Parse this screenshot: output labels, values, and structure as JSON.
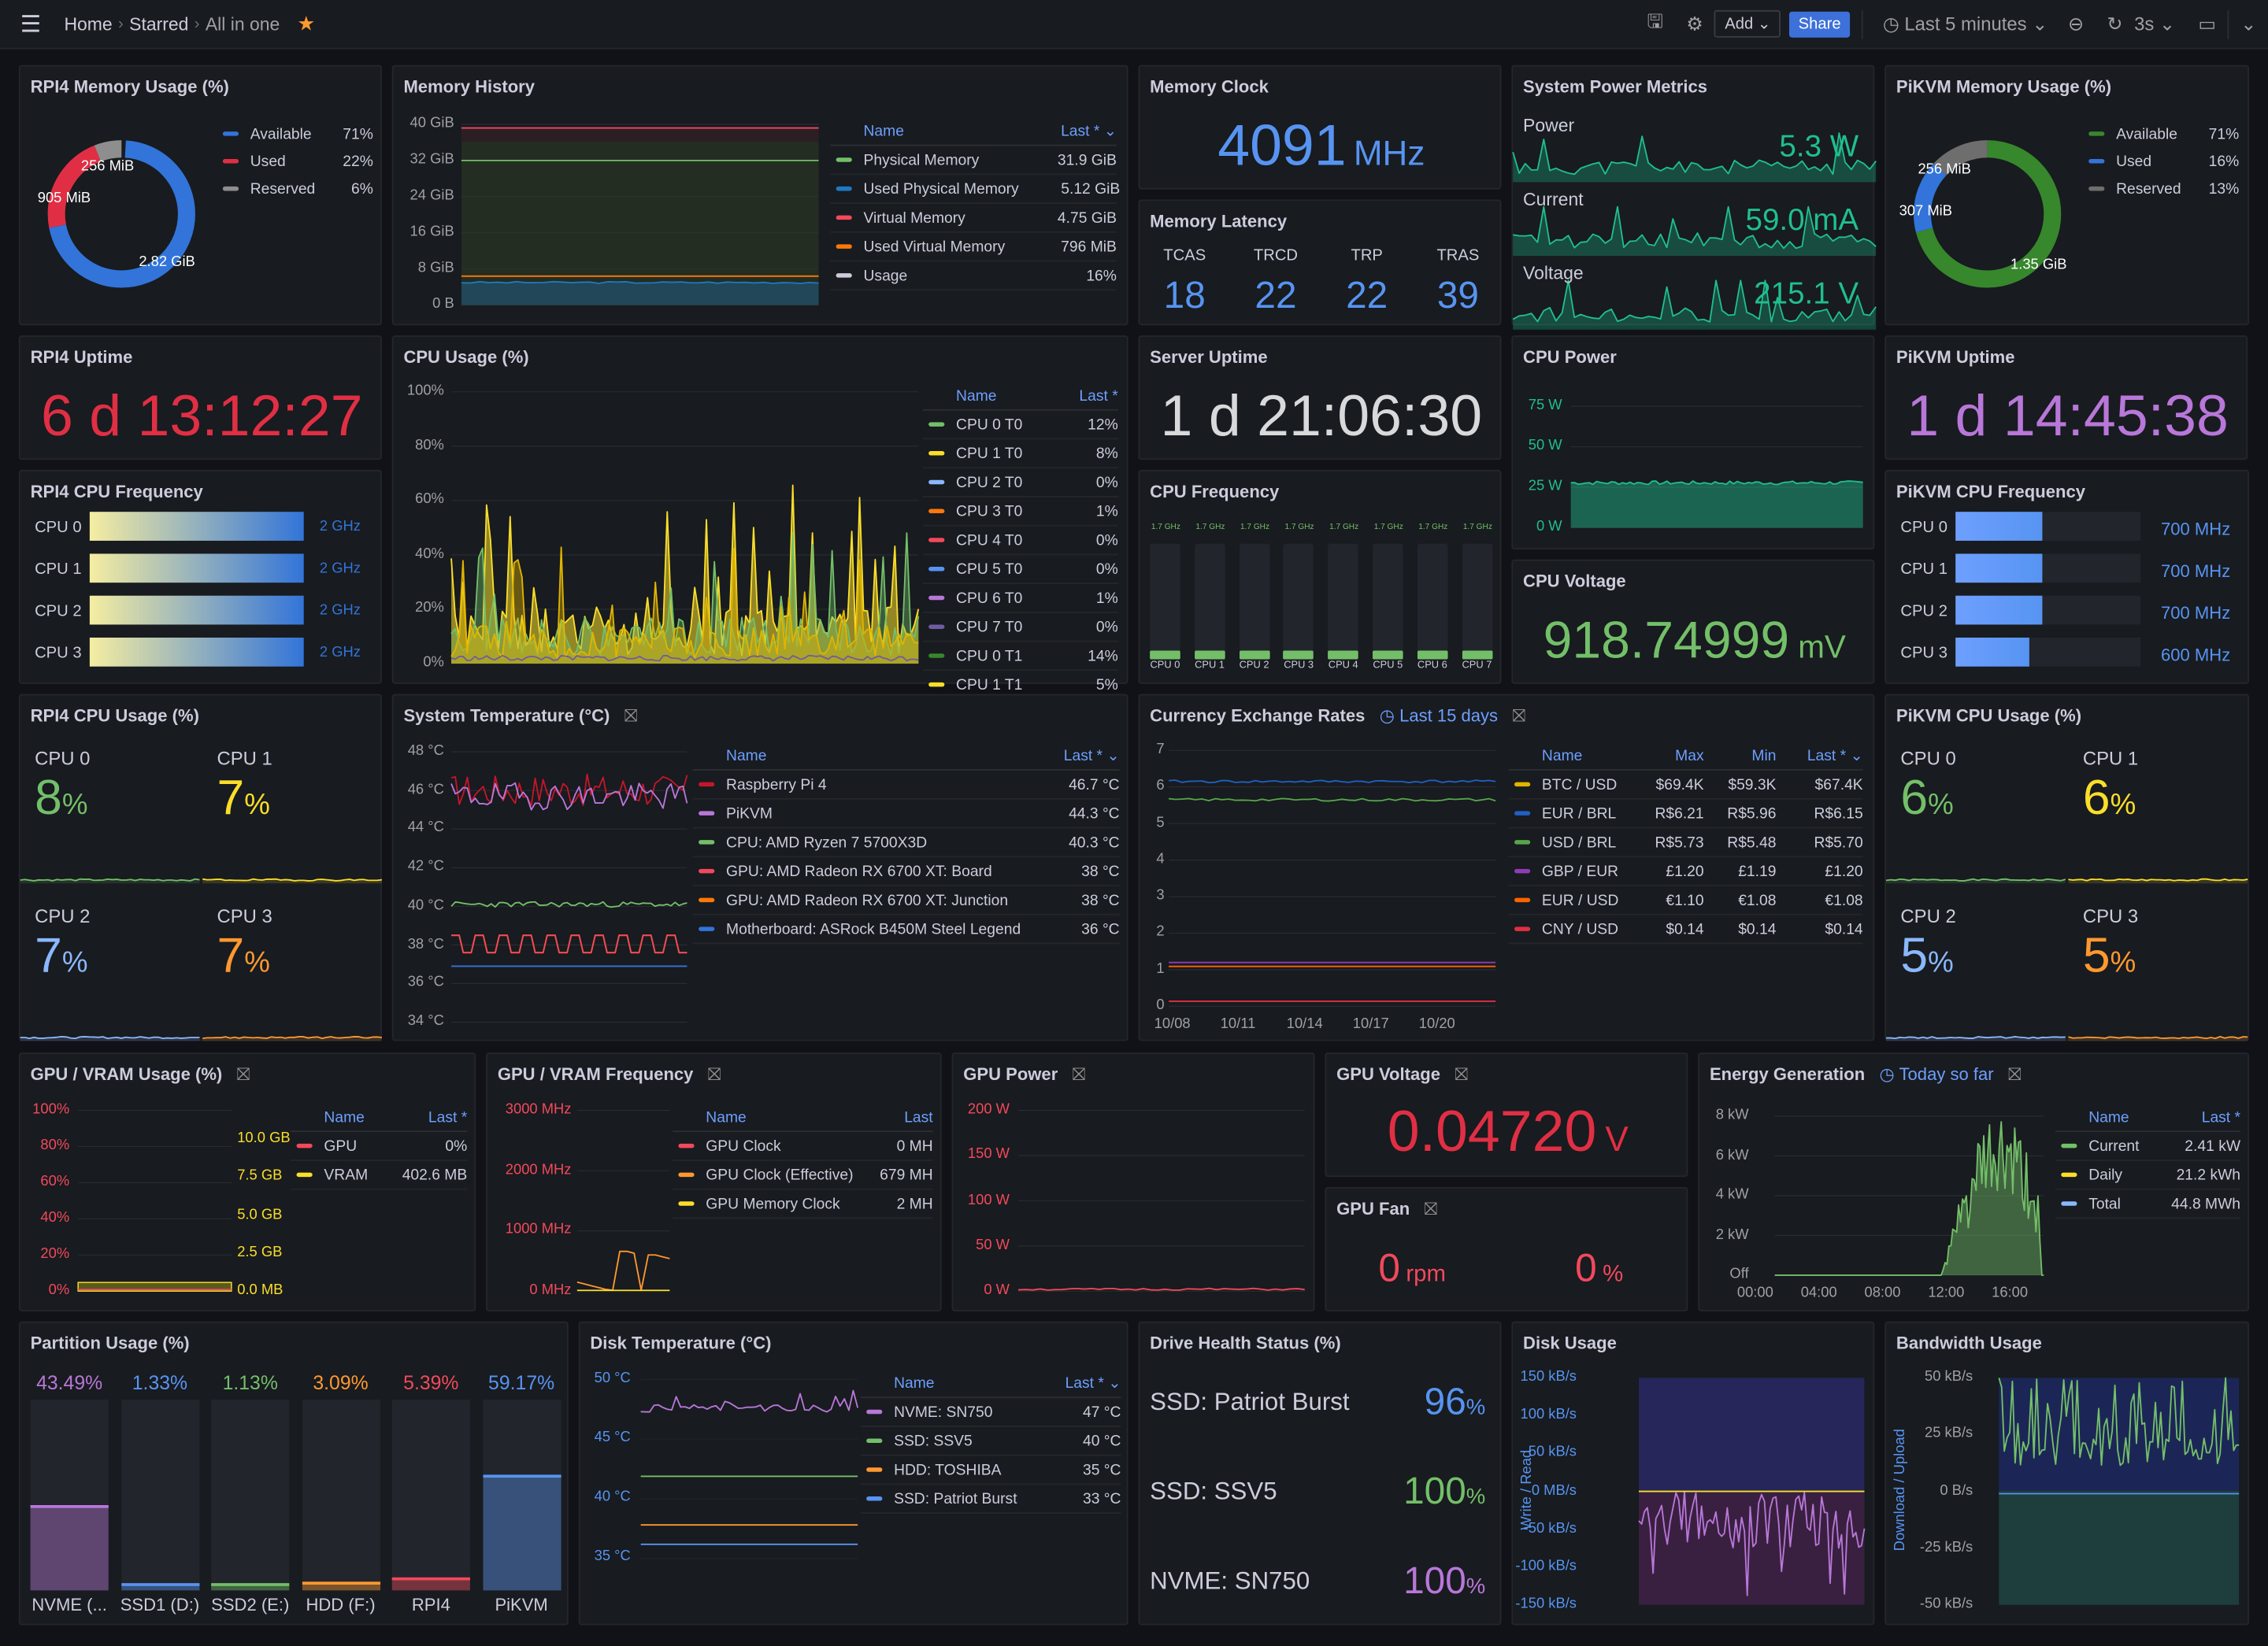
{
  "topbar": {
    "breadcrumb": [
      "Home",
      "Starred",
      "All in one"
    ],
    "add_label": "Add",
    "share_label": "Share",
    "time_range": "Last 5 minutes",
    "refresh_interval": "3s",
    "icons": [
      "menu-icon",
      "star-icon",
      "save-icon",
      "gear-icon",
      "clock-icon",
      "zoom-out-icon",
      "refresh-icon",
      "tv-icon",
      "chevron-down-icon"
    ]
  },
  "colors": {
    "background": "#111217",
    "panel": "#181b1f",
    "accent": "#3d71d9",
    "green": "#73bf69",
    "yellow": "#fade2a",
    "blue": "#5794f2",
    "orange": "#ff9830",
    "red": "#f2495c",
    "purple": "#b877d9"
  },
  "panels": {
    "rpi4_mem": {
      "title": "RPI4 Memory Usage (%)",
      "slice_labels": [
        "256 MiB",
        "905 MiB",
        "2.82 GiB"
      ],
      "legend": {
        "rows": [
          {
            "name": "Available",
            "values": [
              "71%"
            ],
            "color": "#3274d9",
            "pct": 71
          },
          {
            "name": "Used",
            "values": [
              "22%"
            ],
            "color": "#e02f44",
            "pct": 22
          },
          {
            "name": "Reserved",
            "values": [
              "6%"
            ],
            "color": "#8e8e8e",
            "pct": 6
          }
        ]
      }
    },
    "mem_history": {
      "title": "Memory History",
      "yticks": [
        "40 GiB",
        "32 GiB",
        "24 GiB",
        "16 GiB",
        "8 GiB",
        "0 B"
      ],
      "legend": {
        "headers": [
          "Name",
          "Last * ⌄"
        ],
        "rows": [
          {
            "name": "Physical Memory",
            "values": [
              "31.9 GiB"
            ],
            "color": "#73bf69"
          },
          {
            "name": "Used Physical Memory",
            "values": [
              "5.12 GiB"
            ],
            "color": "#1f78c1"
          },
          {
            "name": "Virtual Memory",
            "values": [
              "4.75 GiB"
            ],
            "color": "#f2495c"
          },
          {
            "name": "Used Virtual Memory",
            "values": [
              "796 MiB"
            ],
            "color": "#ff780a"
          },
          {
            "name": "Usage",
            "values": [
              "16%"
            ],
            "color": "#ccccdc"
          }
        ]
      }
    },
    "mem_clock": {
      "title": "Memory Clock",
      "value": "4091",
      "unit": "MHz"
    },
    "mem_latency": {
      "title": "Memory Latency",
      "items": [
        {
          "label": "TCAS",
          "value": "18"
        },
        {
          "label": "TRCD",
          "value": "22"
        },
        {
          "label": "TRP",
          "value": "22"
        },
        {
          "label": "TRAS",
          "value": "39"
        }
      ]
    },
    "power_metrics": {
      "title": "System Power Metrics",
      "items": [
        {
          "label": "Power",
          "value": "5.3 W"
        },
        {
          "label": "Current",
          "value": "59.0 mA"
        },
        {
          "label": "Voltage",
          "value": "215.1 V"
        }
      ]
    },
    "pikvm_mem": {
      "title": "PiKVM Memory Usage (%)",
      "slice_labels": [
        "256 MiB",
        "307 MiB",
        "1.35 GiB"
      ],
      "legend": {
        "rows": [
          {
            "name": "Available",
            "values": [
              "71%"
            ],
            "color": "#37872d",
            "pct": 71
          },
          {
            "name": "Used",
            "values": [
              "16%"
            ],
            "color": "#3274d9",
            "pct": 16
          },
          {
            "name": "Reserved",
            "values": [
              "13%"
            ],
            "color": "#6e6e6e",
            "pct": 13
          }
        ]
      }
    },
    "rpi4_uptime": {
      "title": "RPI4 Uptime",
      "value": "6 d 13:12:27"
    },
    "cpu_usage": {
      "title": "CPU Usage (%)",
      "yticks": [
        "100%",
        "80%",
        "60%",
        "40%",
        "20%",
        "0%"
      ],
      "legend": {
        "headers": [
          "Name",
          "Last *"
        ],
        "rows": [
          {
            "name": "CPU 0 T0",
            "values": [
              "12%"
            ],
            "color": "#73bf69"
          },
          {
            "name": "CPU 1 T0",
            "values": [
              "8%"
            ],
            "color": "#fade2a"
          },
          {
            "name": "CPU 2 T0",
            "values": [
              "0%"
            ],
            "color": "#8ab8ff"
          },
          {
            "name": "CPU 3 T0",
            "values": [
              "1%"
            ],
            "color": "#ff780a"
          },
          {
            "name": "CPU 4 T0",
            "values": [
              "0%"
            ],
            "color": "#f2495c"
          },
          {
            "name": "CPU 5 T0",
            "values": [
              "0%"
            ],
            "color": "#5794f2"
          },
          {
            "name": "CPU 6 T0",
            "values": [
              "1%"
            ],
            "color": "#b877d9"
          },
          {
            "name": "CPU 7 T0",
            "values": [
              "0%"
            ],
            "color": "#705da0"
          },
          {
            "name": "CPU 0 T1",
            "values": [
              "14%"
            ],
            "color": "#37872d"
          },
          {
            "name": "CPU 1 T1",
            "values": [
              "5%"
            ],
            "color": "#fade2a"
          }
        ]
      }
    },
    "server_uptime": {
      "title": "Server Uptime",
      "value": "1 d 21:06:30"
    },
    "cpu_power": {
      "title": "CPU Power",
      "yticks": [
        "75 W",
        "50 W",
        "25 W",
        "0 W"
      ]
    },
    "pikvm_uptime": {
      "title": "PiKVM Uptime",
      "value": "1 d 14:45:38"
    },
    "rpi4_cpu_freq": {
      "title": "RPI4 CPU Frequency",
      "bars": [
        {
          "label": "CPU 0",
          "value": "2 GHz",
          "level": 1
        },
        {
          "label": "CPU 1",
          "value": "2 GHz",
          "level": 1
        },
        {
          "label": "CPU 2",
          "value": "2 GHz",
          "level": 1
        },
        {
          "label": "CPU 3",
          "value": "2 GHz",
          "level": 1
        }
      ]
    },
    "cpu_freq": {
      "title": "CPU Frequency",
      "bars": [
        {
          "label": "CPU 0",
          "value": "1.7 GHz",
          "level": 0.08
        },
        {
          "label": "CPU 1",
          "value": "1.7 GHz",
          "level": 0.08
        },
        {
          "label": "CPU 2",
          "value": "1.7 GHz",
          "level": 0.08
        },
        {
          "label": "CPU 3",
          "value": "1.7 GHz",
          "level": 0.08
        },
        {
          "label": "CPU 4",
          "value": "1.7 GHz",
          "level": 0.08
        },
        {
          "label": "CPU 5",
          "value": "1.7 GHz",
          "level": 0.08
        },
        {
          "label": "CPU 6",
          "value": "1.7 GHz",
          "level": 0.08
        },
        {
          "label": "CPU 7",
          "value": "1.7 GHz",
          "level": 0.08
        }
      ]
    },
    "cpu_voltage": {
      "title": "CPU Voltage",
      "value": "918.74999",
      "unit": "mV"
    },
    "pikvm_cpu_freq": {
      "title": "PiKVM CPU Frequency",
      "bars": [
        {
          "label": "CPU 0",
          "value": "700 MHz",
          "level": 0.47
        },
        {
          "label": "CPU 1",
          "value": "700 MHz",
          "level": 0.47
        },
        {
          "label": "CPU 2",
          "value": "700 MHz",
          "level": 0.47
        },
        {
          "label": "CPU 3",
          "value": "600 MHz",
          "level": 0.4
        }
      ]
    },
    "rpi4_cpu_usage": {
      "title": "RPI4 CPU Usage (%)",
      "items": [
        {
          "label": "CPU 0",
          "value": "8",
          "unit": "%",
          "color": "#73bf69"
        },
        {
          "label": "CPU 1",
          "value": "7",
          "unit": "%",
          "color": "#fade2a"
        },
        {
          "label": "CPU 2",
          "value": "7",
          "unit": "%",
          "color": "#8ab8ff"
        },
        {
          "label": "CPU 3",
          "value": "7",
          "unit": "%",
          "color": "#ff9830"
        }
      ]
    },
    "sys_temp": {
      "title": "System Temperature (°C)",
      "yticks": [
        "48 °C",
        "46 °C",
        "44 °C",
        "42 °C",
        "40 °C",
        "38 °C",
        "36 °C",
        "34 °C"
      ],
      "legend": {
        "headers": [
          "Name",
          "Last * ⌄"
        ],
        "rows": [
          {
            "name": "Raspberry Pi 4",
            "values": [
              "46.7 °C"
            ],
            "color": "#c4162a"
          },
          {
            "name": "PiKVM",
            "values": [
              "44.3 °C"
            ],
            "color": "#b877d9"
          },
          {
            "name": "CPU: AMD Ryzen 7 5700X3D",
            "values": [
              "40.3 °C"
            ],
            "color": "#73bf69"
          },
          {
            "name": "GPU: AMD Radeon RX 6700 XT: Board",
            "values": [
              "38 °C"
            ],
            "color": "#f2495c"
          },
          {
            "name": "GPU: AMD Radeon RX 6700 XT: Junction",
            "values": [
              "38 °C"
            ],
            "color": "#ff780a"
          },
          {
            "name": "Motherboard: ASRock B450M Steel Legend",
            "values": [
              "36 °C"
            ],
            "color": "#3274d9"
          }
        ]
      }
    },
    "currency": {
      "title": "Currency Exchange Rates",
      "subtitle": "Last 15 days",
      "yticks": [
        "7",
        "6",
        "5",
        "4",
        "3",
        "2",
        "1",
        "0"
      ],
      "xticks": [
        "10/08",
        "10/11",
        "10/14",
        "10/17",
        "10/20"
      ],
      "legend": {
        "headers": [
          "Name",
          "Max",
          "Min",
          "Last * ⌄"
        ],
        "rows": [
          {
            "name": "BTC / USD",
            "values": [
              "$69.4K",
              "$59.3K",
              "$67.4K"
            ],
            "color": "#e0b400"
          },
          {
            "name": "EUR / BRL",
            "values": [
              "R$6.21",
              "R$5.96",
              "R$6.15"
            ],
            "color": "#1f60c4"
          },
          {
            "name": "USD / BRL",
            "values": [
              "R$5.73",
              "R$5.48",
              "R$5.70"
            ],
            "color": "#56a64b"
          },
          {
            "name": "GBP / EUR",
            "values": [
              "£1.20",
              "£1.19",
              "£1.20"
            ],
            "color": "#8f3bb8"
          },
          {
            "name": "EUR / USD",
            "values": [
              "€1.10",
              "€1.08",
              "€1.08"
            ],
            "color": "#fa6400"
          },
          {
            "name": "CNY / USD",
            "values": [
              "$0.14",
              "$0.14",
              "$0.14"
            ],
            "color": "#e02f44"
          }
        ]
      }
    },
    "pikvm_cpu_usage": {
      "title": "PiKVM CPU Usage (%)",
      "items": [
        {
          "label": "CPU 0",
          "value": "6",
          "unit": "%",
          "color": "#73bf69"
        },
        {
          "label": "CPU 1",
          "value": "6",
          "unit": "%",
          "color": "#fade2a"
        },
        {
          "label": "CPU 2",
          "value": "5",
          "unit": "%",
          "color": "#8ab8ff"
        },
        {
          "label": "CPU 3",
          "value": "5",
          "unit": "%",
          "color": "#ff9830"
        }
      ]
    },
    "gpu_usage": {
      "title": "GPU / VRAM Usage (%)",
      "yticks": [
        "100%",
        "80%",
        "60%",
        "40%",
        "20%",
        "0%"
      ],
      "yticks_right": [
        "10.0 GB",
        "7.5 GB",
        "5.0 GB",
        "2.5 GB",
        "0.0 MB"
      ],
      "legend": {
        "headers": [
          "Name",
          "Last *"
        ],
        "rows": [
          {
            "name": "GPU",
            "values": [
              "0%"
            ],
            "color": "#f2495c"
          },
          {
            "name": "VRAM",
            "values": [
              "402.6 MB"
            ],
            "color": "#fade2a"
          }
        ]
      }
    },
    "gpu_freq": {
      "title": "GPU / VRAM Frequency",
      "yticks": [
        "3000 MHz",
        "2000 MHz",
        "1000 MHz",
        "0 MHz"
      ],
      "legend": {
        "headers": [
          "Name",
          "Last"
        ],
        "rows": [
          {
            "name": "GPU Clock",
            "values": [
              "0 MH"
            ],
            "color": "#f2495c"
          },
          {
            "name": "GPU Clock (Effective)",
            "values": [
              "679 MH"
            ],
            "color": "#ff9830"
          },
          {
            "name": "GPU Memory Clock",
            "values": [
              "2 MH"
            ],
            "color": "#fade2a"
          }
        ]
      }
    },
    "gpu_power": {
      "title": "GPU Power",
      "yticks": [
        "200 W",
        "150 W",
        "100 W",
        "50 W",
        "0 W"
      ]
    },
    "gpu_voltage": {
      "title": "GPU Voltage",
      "value": "0.04720",
      "unit": "V"
    },
    "gpu_fan": {
      "title": "GPU Fan",
      "items": [
        {
          "value": "0",
          "unit": "rpm"
        },
        {
          "value": "0",
          "unit": "%"
        }
      ]
    },
    "energy": {
      "title": "Energy Generation",
      "subtitle": "Today so far",
      "yticks": [
        "8 kW",
        "6 kW",
        "4 kW",
        "2 kW",
        "Off"
      ],
      "xticks": [
        "00:00",
        "04:00",
        "08:00",
        "12:00",
        "16:00"
      ],
      "legend": {
        "headers": [
          "Name",
          "Last *"
        ],
        "rows": [
          {
            "name": "Current",
            "values": [
              "2.41 kW"
            ],
            "color": "#73bf69"
          },
          {
            "name": "Daily",
            "values": [
              "21.2 kWh"
            ],
            "color": "#fade2a"
          },
          {
            "name": "Total",
            "values": [
              "44.8 MWh"
            ],
            "color": "#8ab8ff"
          }
        ]
      }
    },
    "partition": {
      "title": "Partition Usage (%)",
      "bars": [
        {
          "label": "NVME (...",
          "value": "43.49",
          "unit": "%",
          "color": "#b877d9"
        },
        {
          "label": "SSD1 (D:)",
          "value": "1.33",
          "unit": "%",
          "color": "#5794f2"
        },
        {
          "label": "SSD2 (E:)",
          "value": "1.13",
          "unit": "%",
          "color": "#73bf69"
        },
        {
          "label": "HDD (F:)",
          "value": "3.09",
          "unit": "%",
          "color": "#ff9830"
        },
        {
          "label": "RPI4",
          "value": "5.39",
          "unit": "%",
          "color": "#f2495c"
        },
        {
          "label": "PiKVM",
          "value": "59.17",
          "unit": "%",
          "color": "#5794f2"
        }
      ]
    },
    "disk_temp": {
      "title": "Disk Temperature (°C)",
      "yticks": [
        "50 °C",
        "45 °C",
        "40 °C",
        "35 °C"
      ],
      "legend": {
        "headers": [
          "Name",
          "Last * ⌄"
        ],
        "rows": [
          {
            "name": "NVME: SN750",
            "values": [
              "47 °C"
            ],
            "color": "#b877d9"
          },
          {
            "name": "SSD: SSV5",
            "values": [
              "40 °C"
            ],
            "color": "#73bf69"
          },
          {
            "name": "HDD: TOSHIBA",
            "values": [
              "35 °C"
            ],
            "color": "#ff9830"
          },
          {
            "name": "SSD: Patriot Burst",
            "values": [
              "33 °C"
            ],
            "color": "#5794f2"
          }
        ]
      }
    },
    "drive_health": {
      "title": "Drive Health Status (%)",
      "items": [
        {
          "label": "SSD: Patriot Burst",
          "value": "96",
          "unit": "%",
          "color": "#5794f2"
        },
        {
          "label": "SSD: SSV5",
          "value": "100",
          "unit": "%",
          "color": "#73bf69"
        },
        {
          "label": "NVME: SN750",
          "value": "100",
          "unit": "%",
          "color": "#b877d9"
        }
      ]
    },
    "disk_usage": {
      "title": "Disk Usage",
      "axis_label": "Write  /  Read",
      "yticks": [
        "150 kB/s",
        "100 kB/s",
        "50 kB/s",
        "0 MB/s",
        "-50 kB/s",
        "-100 kB/s",
        "-150 kB/s"
      ]
    },
    "bandwidth": {
      "title": "Bandwidth Usage",
      "axis_label": "Download  /  Upload",
      "yticks": [
        "50 kB/s",
        "25 kB/s",
        "0 B/s",
        "-25 kB/s",
        "-50 kB/s"
      ]
    }
  }
}
